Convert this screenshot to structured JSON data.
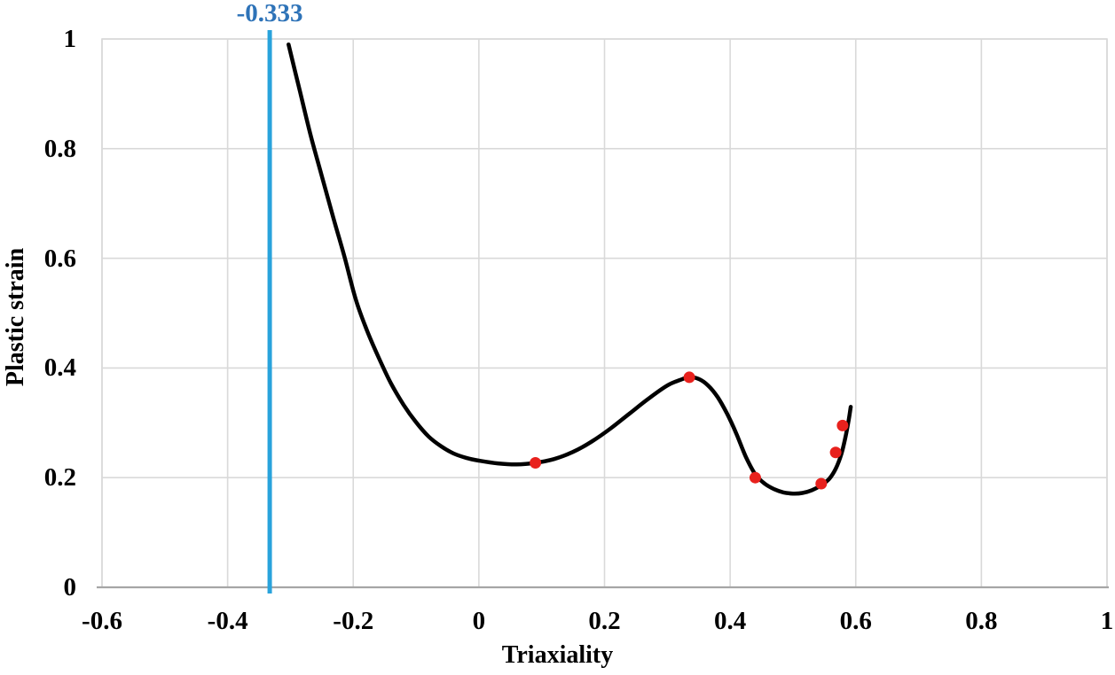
{
  "figure": {
    "background": "#ffffff",
    "colors": {
      "gridline": "#d9d9d9",
      "axis_line": "#a6a6a6",
      "curve": "#000000",
      "points": "#e8211d",
      "threshold_line": "#29a3dc",
      "threshold_label": "#2e73b8",
      "tick_text": "#000000"
    }
  },
  "chart_data": {
    "type": "line",
    "title": "",
    "xlabel": "Triaxiality",
    "ylabel": "Plastic strain",
    "xlim": [
      -0.6,
      1
    ],
    "ylim": [
      0,
      1
    ],
    "x_ticks": [
      -0.6,
      -0.4,
      -0.2,
      0,
      0.2,
      0.4,
      0.6,
      0.8,
      1
    ],
    "x_tick_labels": [
      "-0.6",
      "-0.4",
      "-0.2",
      "0",
      "0.2",
      "0.4",
      "0.6",
      "0.8",
      "1"
    ],
    "y_ticks": [
      0,
      0.2,
      0.4,
      0.6,
      0.8,
      1
    ],
    "y_tick_labels": [
      "0",
      "0.2",
      "0.4",
      "0.6",
      "0.8",
      "1"
    ],
    "grid": true,
    "legend": "none",
    "annotations": [
      {
        "name": "cutoff-line",
        "type": "vline",
        "x": -0.333,
        "label": "-0.333"
      }
    ],
    "series": [
      {
        "name": "fracture-locus-curve",
        "type": "line",
        "color": "#000000",
        "points": [
          [
            -0.303,
            0.99
          ],
          [
            -0.285,
            0.905
          ],
          [
            -0.268,
            0.825
          ],
          [
            -0.25,
            0.75
          ],
          [
            -0.232,
            0.675
          ],
          [
            -0.214,
            0.603
          ],
          [
            -0.196,
            0.525
          ],
          [
            -0.178,
            0.468
          ],
          [
            -0.16,
            0.42
          ],
          [
            -0.14,
            0.372
          ],
          [
            -0.12,
            0.333
          ],
          [
            -0.1,
            0.301
          ],
          [
            -0.08,
            0.275
          ],
          [
            -0.06,
            0.257
          ],
          [
            -0.04,
            0.244
          ],
          [
            -0.02,
            0.236
          ],
          [
            0.0,
            0.231
          ],
          [
            0.03,
            0.226
          ],
          [
            0.06,
            0.224
          ],
          [
            0.09,
            0.227
          ],
          [
            0.12,
            0.234
          ],
          [
            0.15,
            0.247
          ],
          [
            0.18,
            0.266
          ],
          [
            0.21,
            0.29
          ],
          [
            0.24,
            0.317
          ],
          [
            0.27,
            0.344
          ],
          [
            0.3,
            0.368
          ],
          [
            0.32,
            0.378
          ],
          [
            0.335,
            0.383
          ],
          [
            0.35,
            0.38
          ],
          [
            0.365,
            0.368
          ],
          [
            0.38,
            0.347
          ],
          [
            0.395,
            0.317
          ],
          [
            0.41,
            0.28
          ],
          [
            0.425,
            0.238
          ],
          [
            0.44,
            0.206
          ],
          [
            0.455,
            0.189
          ],
          [
            0.47,
            0.179
          ],
          [
            0.485,
            0.173
          ],
          [
            0.5,
            0.171
          ],
          [
            0.515,
            0.172
          ],
          [
            0.53,
            0.177
          ],
          [
            0.545,
            0.186
          ],
          [
            0.558,
            0.198
          ],
          [
            0.568,
            0.216
          ],
          [
            0.577,
            0.243
          ],
          [
            0.584,
            0.276
          ],
          [
            0.589,
            0.307
          ],
          [
            0.592,
            0.329
          ]
        ]
      },
      {
        "name": "experimental-points",
        "type": "scatter",
        "color": "#e8211d",
        "points": [
          [
            0.09,
            0.227
          ],
          [
            0.335,
            0.383
          ],
          [
            0.44,
            0.2
          ],
          [
            0.545,
            0.189
          ],
          [
            0.568,
            0.246
          ],
          [
            0.579,
            0.295
          ]
        ]
      }
    ]
  }
}
